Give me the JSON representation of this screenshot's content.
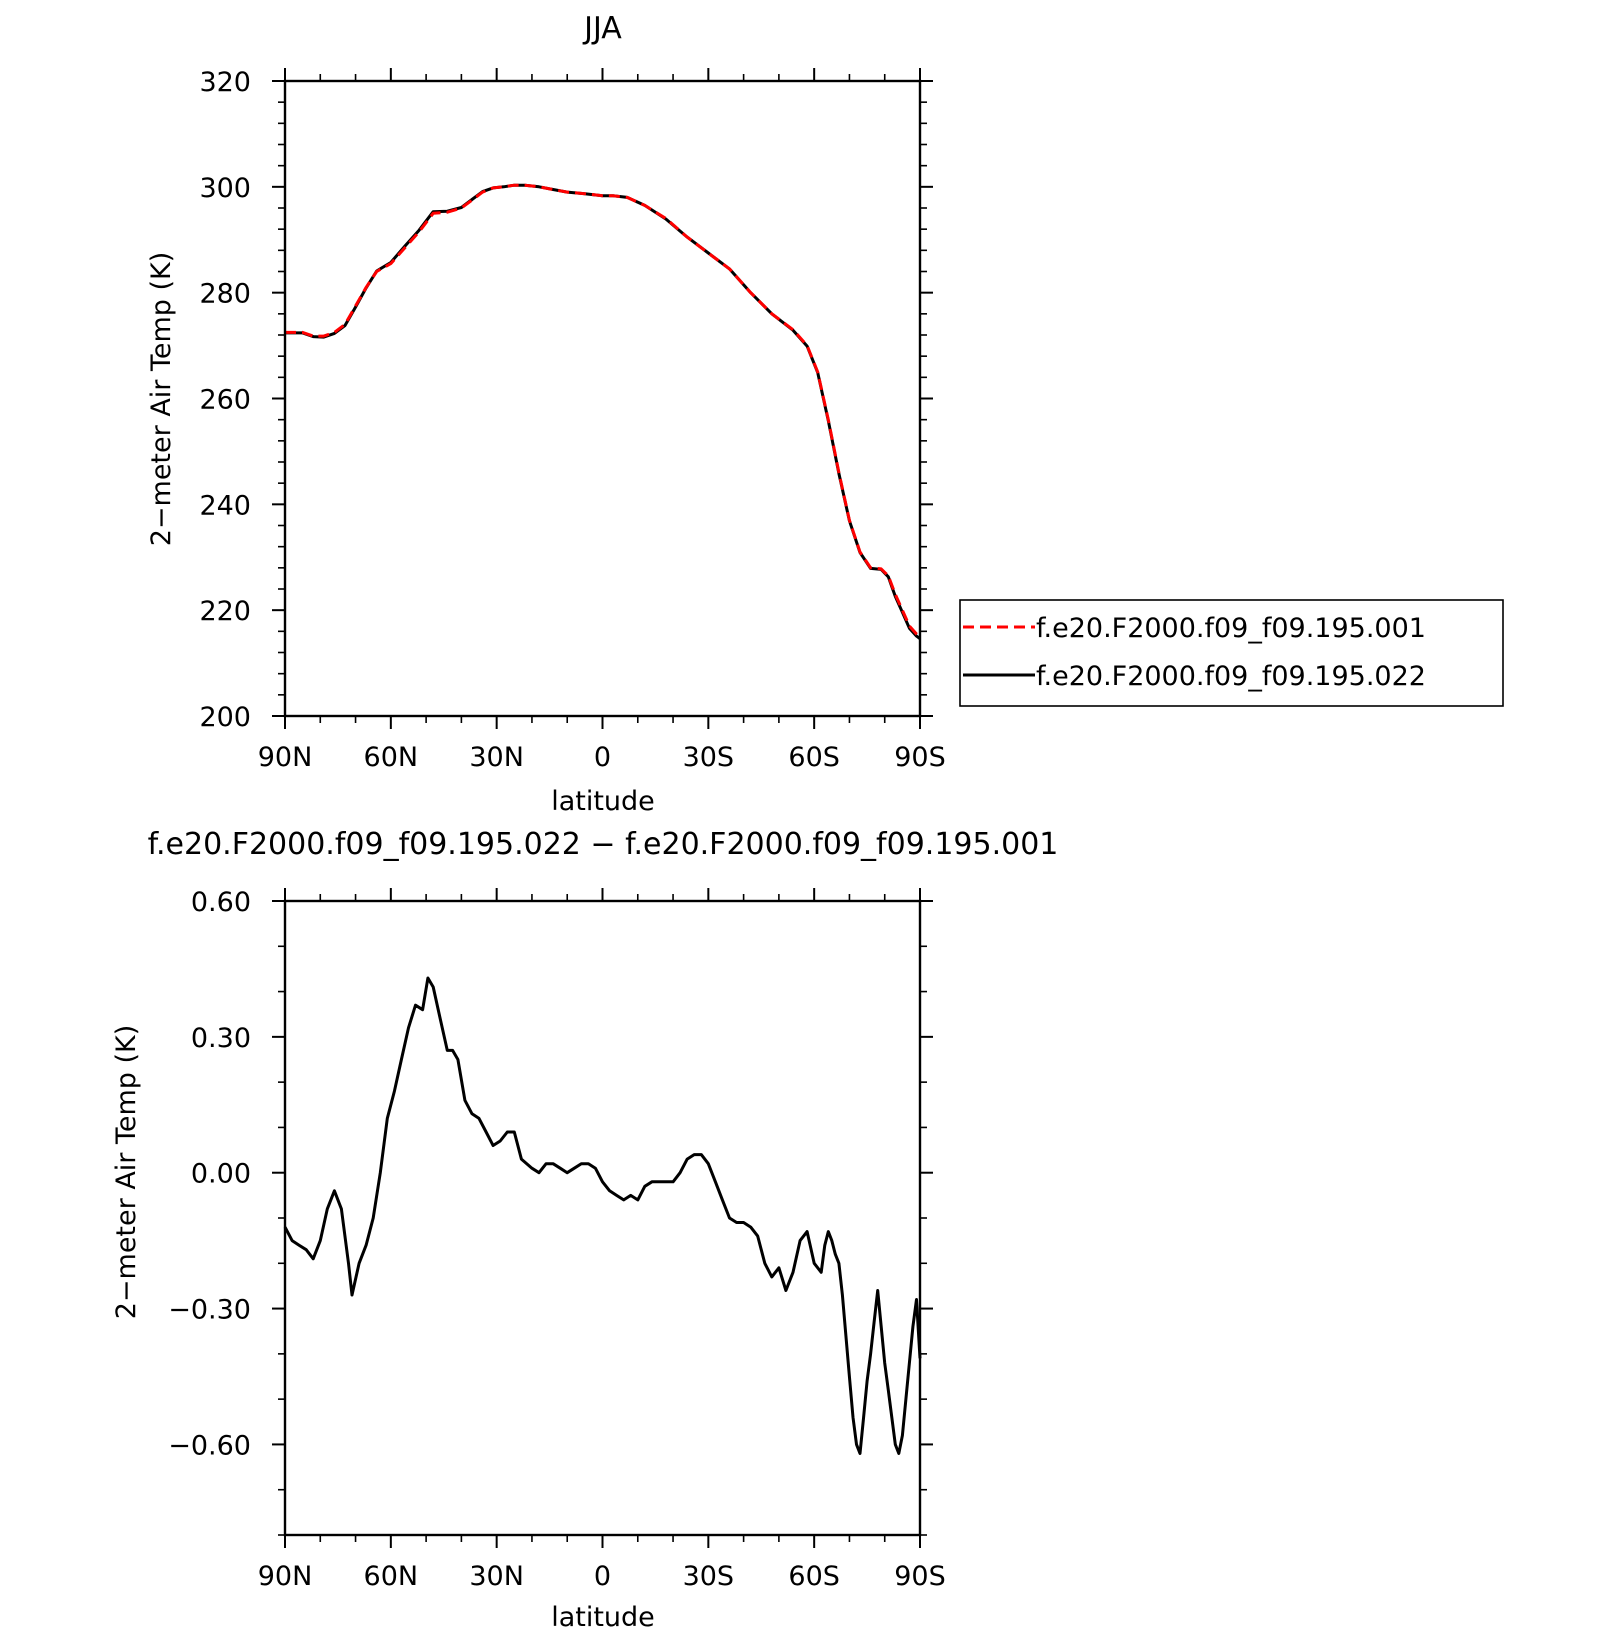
{
  "figure": {
    "charts": [
      {
        "title": "JJA",
        "ylabel": "2−meter Air Temp (K)",
        "xlabel": "latitude"
      },
      {
        "title": "f.e20.F2000.f09_f09.195.022 − f.e20.F2000.f09_f09.195.001",
        "ylabel": "2−meter Air Temp (K)",
        "xlabel": "latitude"
      }
    ],
    "legend": [
      {
        "label": "f.e20.F2000.f09_f09.195.001",
        "color": "#ff0000",
        "dash": true
      },
      {
        "label": "f.e20.F2000.f09_f09.195.022",
        "color": "#000000",
        "dash": false
      }
    ]
  },
  "chart_data": [
    {
      "type": "line",
      "title": "JJA",
      "xlabel": "latitude",
      "ylabel": "2−meter Air Temp (K)",
      "xlim": [
        90,
        -90
      ],
      "ylim": [
        200,
        320
      ],
      "x_ticks": [
        90,
        60,
        30,
        0,
        -30,
        -60,
        -90
      ],
      "x_tick_labels": [
        "90N",
        "60N",
        "30N",
        "0",
        "30S",
        "60S",
        "90S"
      ],
      "y_ticks": [
        200,
        220,
        240,
        260,
        280,
        300,
        320
      ],
      "y_tick_labels": [
        "200",
        "220",
        "240",
        "260",
        "280",
        "300",
        "320"
      ],
      "grid": false,
      "legend_position": "right",
      "x": [
        90,
        85,
        82,
        79,
        76,
        73,
        70,
        67,
        64,
        60,
        56,
        52,
        48,
        44,
        40,
        37,
        34,
        31,
        28,
        25,
        22,
        18,
        14,
        10,
        5,
        0,
        -3,
        -7,
        -12,
        -18,
        -24,
        -30,
        -36,
        -42,
        -48,
        -54,
        -58,
        -61,
        -64,
        -67,
        -70,
        -73,
        -76,
        -79,
        -81,
        -83,
        -85,
        -87,
        -89,
        -90
      ],
      "series": [
        {
          "name": "f.e20.F2000.f09_f09.195.001",
          "color": "#ff0000",
          "dash": true,
          "values": [
            272.5,
            272.5,
            271.8,
            271.8,
            272.5,
            274.0,
            277.5,
            281.0,
            284.0,
            285.5,
            288.5,
            291.5,
            295.0,
            295.2,
            296.0,
            297.5,
            299.0,
            299.8,
            300.0,
            300.3,
            300.3,
            300.0,
            299.5,
            299.0,
            298.7,
            298.3,
            298.3,
            298.0,
            296.5,
            294.0,
            290.5,
            287.5,
            284.5,
            280.0,
            276.0,
            273.0,
            270.0,
            265.0,
            256.0,
            246.0,
            237.0,
            231.0,
            228.0,
            227.8,
            226.5,
            223.0,
            220.0,
            217.0,
            215.5,
            215.0
          ]
        },
        {
          "name": "f.e20.F2000.f09_f09.195.022",
          "color": "#000000",
          "dash": false,
          "values": [
            272.4,
            272.4,
            271.7,
            271.6,
            272.3,
            273.8,
            277.3,
            280.9,
            284.1,
            285.7,
            288.8,
            291.8,
            295.3,
            295.4,
            296.1,
            297.6,
            299.1,
            299.8,
            300.0,
            300.3,
            300.3,
            300.0,
            299.5,
            299.0,
            298.7,
            298.3,
            298.3,
            298.0,
            296.5,
            293.9,
            290.5,
            287.5,
            284.5,
            280.0,
            276.0,
            272.9,
            269.9,
            264.9,
            255.8,
            245.8,
            236.9,
            230.9,
            227.9,
            227.7,
            226.3,
            222.6,
            219.6,
            216.6,
            215.1,
            214.6
          ]
        }
      ]
    },
    {
      "type": "line",
      "title": "f.e20.F2000.f09_f09.195.022 − f.e20.F2000.f09_f09.195.001",
      "xlabel": "latitude",
      "ylabel": "2−meter Air Temp (K)",
      "xlim": [
        90,
        -90
      ],
      "ylim": [
        -0.8,
        0.6
      ],
      "x_ticks": [
        90,
        60,
        30,
        0,
        -30,
        -60,
        -90
      ],
      "x_tick_labels": [
        "90N",
        "60N",
        "30N",
        "0",
        "30S",
        "60S",
        "90S"
      ],
      "y_ticks": [
        -0.6,
        -0.3,
        0.0,
        0.3,
        0.6
      ],
      "y_tick_labels": [
        "−0.60",
        "−0.30",
        "0.00",
        "0.30",
        "0.60"
      ],
      "grid": false,
      "x": [
        90,
        88,
        86,
        84,
        82,
        80,
        78,
        76,
        74,
        72,
        71,
        69,
        67,
        65,
        63,
        61,
        59,
        57,
        55,
        53,
        51,
        49.5,
        48,
        46,
        44,
        42.5,
        41,
        39,
        37,
        35,
        33,
        31,
        29,
        27,
        25,
        23,
        20,
        18,
        16,
        14,
        12,
        10,
        8,
        6,
        4,
        2,
        0,
        -2,
        -4,
        -6,
        -8,
        -10,
        -12,
        -14,
        -16,
        -18,
        -20,
        -22,
        -24,
        -26,
        -28,
        -30,
        -32,
        -34,
        -36,
        -38,
        -40,
        -42,
        -44,
        -46,
        -48,
        -50,
        -52,
        -54,
        -56,
        -58,
        -60,
        -62,
        -63,
        -64,
        -65,
        -66,
        -67,
        -68,
        -69,
        -70,
        -71,
        -72,
        -73,
        -74,
        -75,
        -76,
        -77,
        -78,
        -79,
        -80,
        -81,
        -82,
        -83,
        -84,
        -85,
        -86,
        -87,
        -88,
        -89,
        -90
      ],
      "series": [
        {
          "name": "",
          "color": "#000000",
          "dash": false,
          "values": [
            -0.12,
            -0.15,
            -0.16,
            -0.17,
            -0.19,
            -0.15,
            -0.08,
            -0.04,
            -0.08,
            -0.2,
            -0.27,
            -0.2,
            -0.16,
            -0.1,
            0.0,
            0.12,
            0.18,
            0.25,
            0.32,
            0.37,
            0.36,
            0.43,
            0.41,
            0.34,
            0.27,
            0.27,
            0.25,
            0.16,
            0.13,
            0.12,
            0.09,
            0.06,
            0.07,
            0.09,
            0.09,
            0.03,
            0.01,
            0.0,
            0.02,
            0.02,
            0.01,
            0.0,
            0.01,
            0.02,
            0.02,
            0.01,
            -0.02,
            -0.04,
            -0.05,
            -0.06,
            -0.05,
            -0.06,
            -0.03,
            -0.02,
            -0.02,
            -0.02,
            -0.02,
            0.0,
            0.03,
            0.04,
            0.04,
            0.02,
            -0.02,
            -0.06,
            -0.1,
            -0.11,
            -0.11,
            -0.12,
            -0.14,
            -0.2,
            -0.23,
            -0.21,
            -0.26,
            -0.22,
            -0.15,
            -0.13,
            -0.2,
            -0.22,
            -0.16,
            -0.13,
            -0.15,
            -0.18,
            -0.2,
            -0.27,
            -0.36,
            -0.45,
            -0.54,
            -0.6,
            -0.62,
            -0.54,
            -0.46,
            -0.4,
            -0.33,
            -0.26,
            -0.34,
            -0.42,
            -0.48,
            -0.54,
            -0.6,
            -0.62,
            -0.58,
            -0.5,
            -0.42,
            -0.34,
            -0.28,
            -0.41
          ]
        }
      ]
    }
  ]
}
